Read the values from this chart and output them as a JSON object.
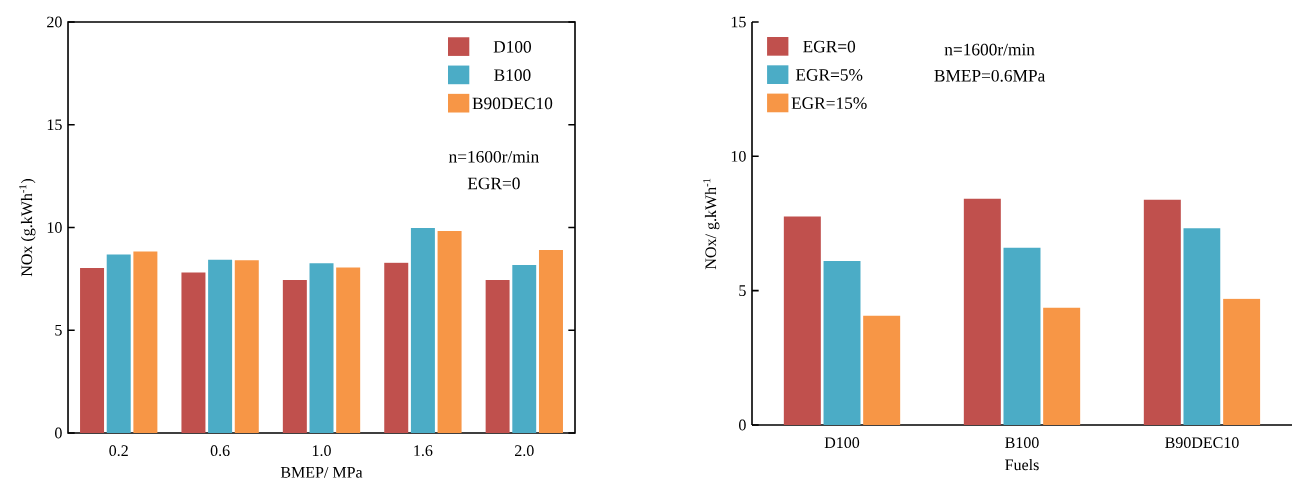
{
  "chart_data": [
    {
      "type": "bar",
      "xlabel": "BMEP/ MPa",
      "ylabel": "NOx (g.kWh$^{-1}$)",
      "categories": [
        "0.2",
        "0.6",
        "1.0",
        "1.6",
        "2.0"
      ],
      "series": [
        {
          "name": "D100",
          "color": "#c0504d",
          "values": [
            8.03,
            7.81,
            7.45,
            8.28,
            7.45
          ]
        },
        {
          "name": "B100",
          "color": "#4bacc6",
          "values": [
            8.69,
            8.43,
            8.26,
            9.97,
            8.17
          ]
        },
        {
          "name": "B90DEC10",
          "color": "#f79646",
          "values": [
            8.83,
            8.41,
            8.05,
            9.83,
            8.9
          ]
        }
      ],
      "ylim": [
        0,
        20
      ],
      "yticks": [
        0,
        5,
        10,
        15,
        20
      ],
      "legend": "top right",
      "annotations": [
        "n=1600r/min",
        "EGR=0"
      ]
    },
    {
      "type": "bar",
      "xlabel": "Fuels",
      "ylabel": "NOx/ g.kWh$^{-1}$",
      "categories": [
        "D100",
        "B100",
        "B90DEC10"
      ],
      "series": [
        {
          "name": "EGR=0",
          "color": "#c0504d",
          "values": [
            7.76,
            8.42,
            8.38
          ]
        },
        {
          "name": "EGR=5%",
          "color": "#4bacc6",
          "values": [
            6.1,
            6.6,
            7.32
          ]
        },
        {
          "name": "EGR=15%",
          "color": "#f79646",
          "values": [
            4.07,
            4.36,
            4.7
          ]
        }
      ],
      "ylim": [
        0,
        15
      ],
      "yticks": [
        0,
        5,
        10,
        15
      ],
      "legend": "top left",
      "annotations": [
        "n=1600r/min",
        "BMEP=0.6MPa"
      ]
    }
  ]
}
